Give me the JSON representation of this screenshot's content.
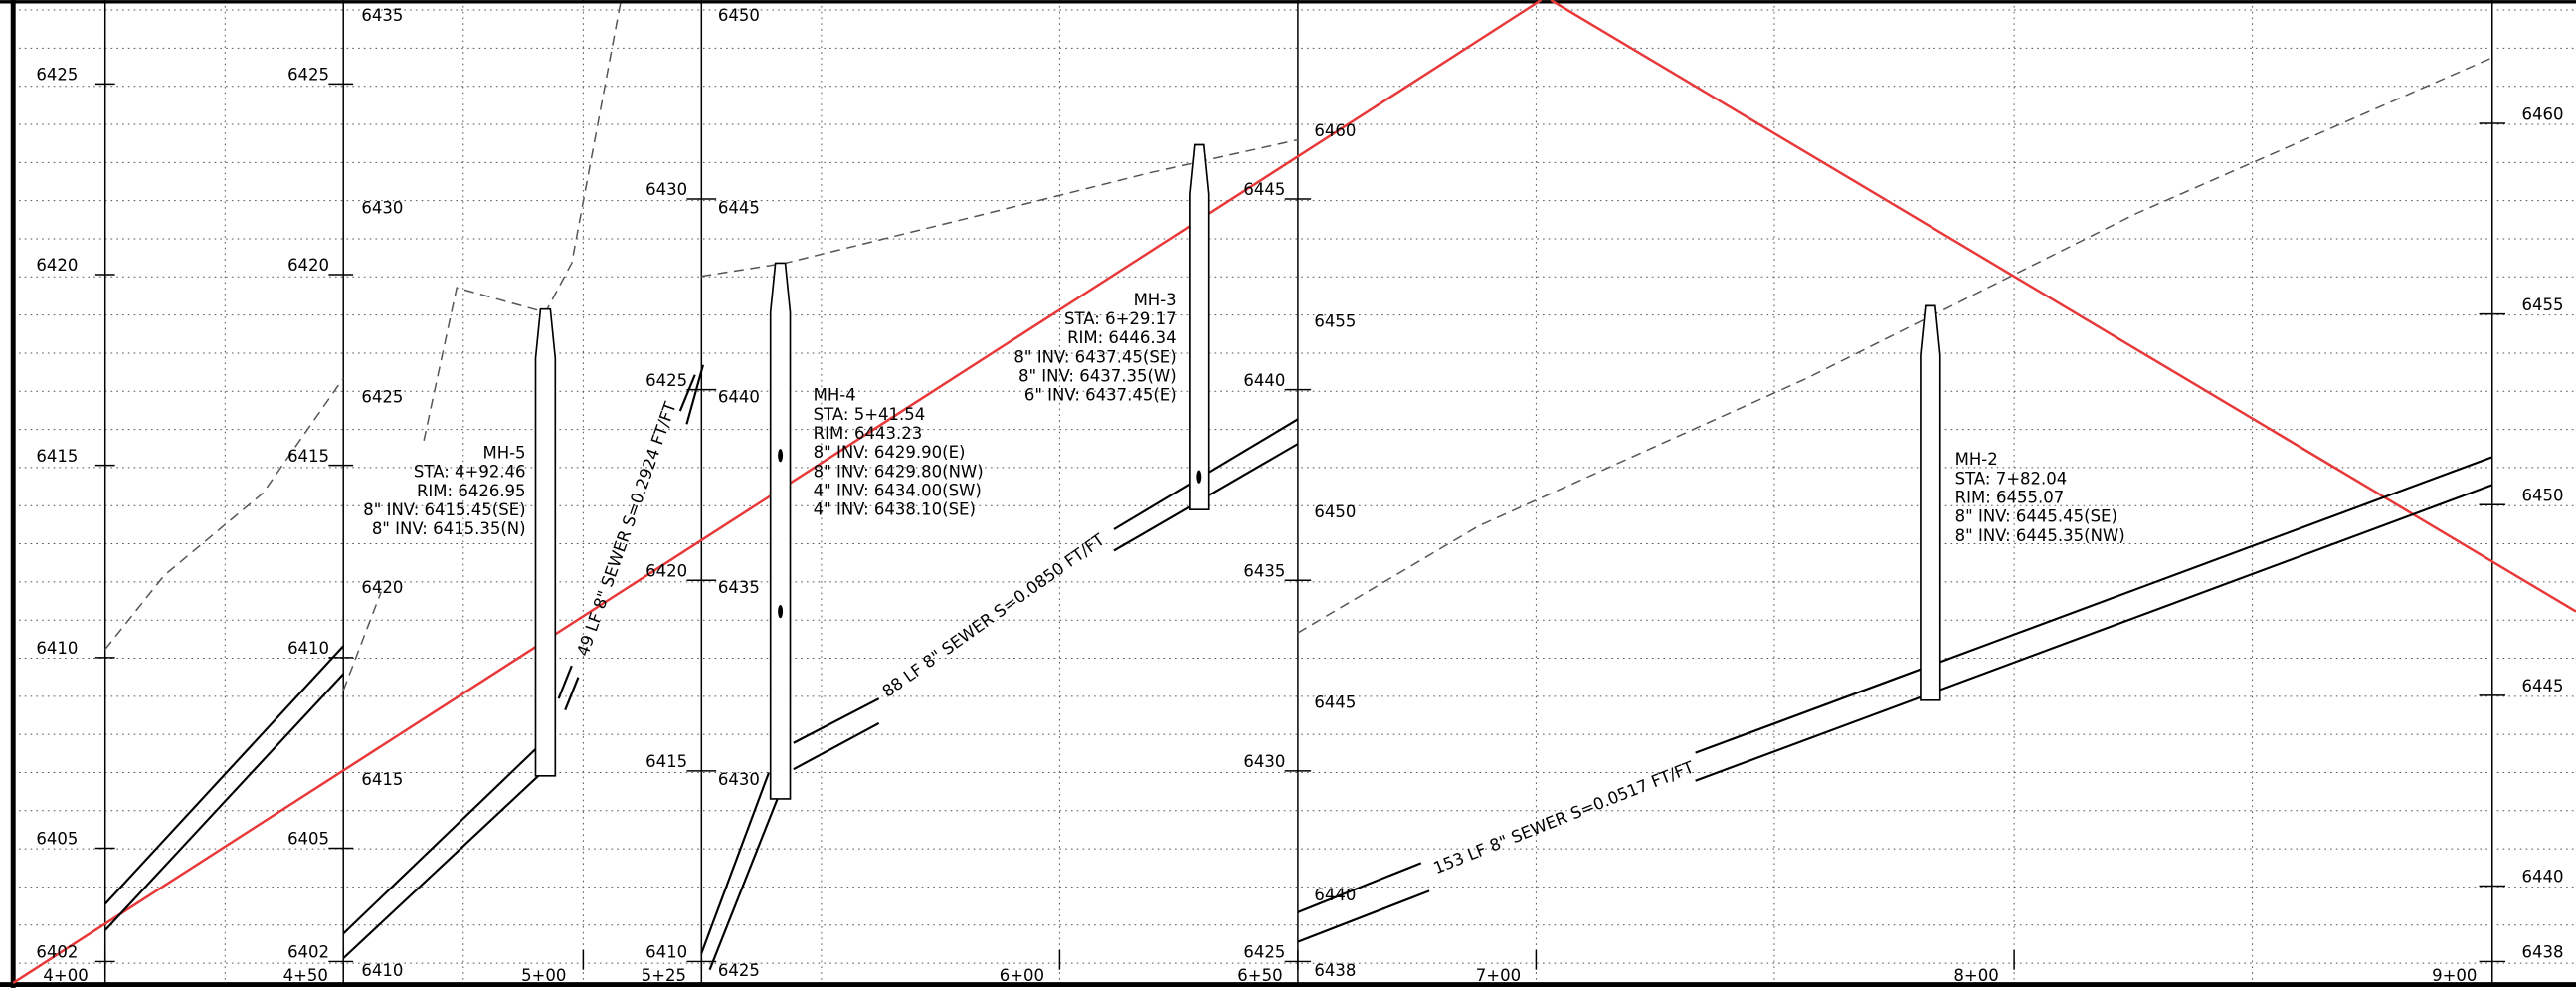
{
  "elevation_labels": [
    [
      "6425",
      "6420",
      "6415",
      "6410",
      "6405",
      "6402"
    ],
    [
      "6425",
      "6420",
      "6415",
      "6410",
      "6405",
      "6402"
    ],
    [
      "6435",
      "6430",
      "6425",
      "6420",
      "6415",
      "6410"
    ],
    [
      "6430",
      "6425",
      "6420",
      "6415",
      "6410"
    ],
    [
      "6450",
      "6445",
      "6440",
      "6435",
      "6430",
      "6425"
    ],
    [
      "6445",
      "6440",
      "6435",
      "6430",
      "6425"
    ],
    [
      "6460",
      "6455",
      "6450",
      "6445",
      "6440",
      "6438"
    ],
    [
      "6460",
      "6455",
      "6450",
      "6445",
      "6440",
      "6438"
    ]
  ],
  "stations": [
    "4+00",
    "4+50",
    "5+00",
    "5+25",
    "6+00",
    "6+50",
    "7+00",
    "8+00",
    "9+00"
  ],
  "manholes": [
    {
      "lines": [
        "MH-5",
        "STA: 4+92.46",
        "RIM: 6426.95",
        "8\" INV: 6415.45(SE)",
        "8\" INV: 6415.35(N)"
      ]
    },
    {
      "lines": [
        "MH-4",
        "STA: 5+41.54",
        "RIM: 6443.23",
        "8\" INV: 6429.90(E)",
        "8\" INV: 6429.80(NW)",
        "4\" INV: 6434.00(SW)",
        "4\" INV: 6438.10(SE)"
      ]
    },
    {
      "lines": [
        "MH-3",
        "STA: 6+29.17",
        "RIM: 6446.34",
        "8\" INV: 6437.45(SE)",
        "8\" INV: 6437.35(W)",
        "6\" INV: 6437.45(E)"
      ]
    },
    {
      "lines": [
        "MH-2",
        "STA: 7+82.04",
        "RIM: 6455.07",
        "8\" INV: 6445.45(SE)",
        "8\" INV: 6445.35(NW)"
      ]
    }
  ],
  "pipes": [
    "49 LF 8\" SEWER S=0.2924 FT/FT",
    "88 LF 8\" SEWER S=0.0850 FT/FT",
    "153 LF 8\" SEWER S=0.0517 FT/FT"
  ]
}
